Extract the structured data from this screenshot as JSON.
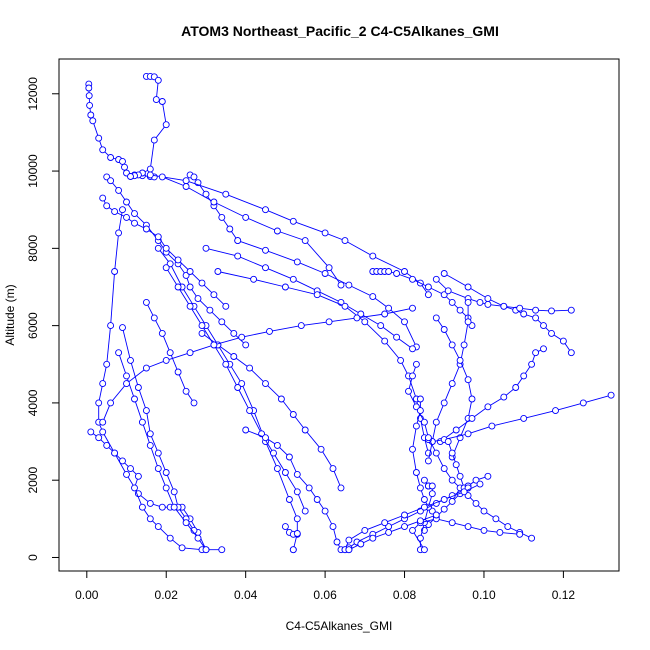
{
  "chart_data": {
    "type": "line",
    "title": "ATOM3 Northeast_Pacific_2 C4-C5Alkanes_GMI",
    "xlabel": "C4-C5Alkanes_GMI",
    "ylabel": "Altitude (m)",
    "xlim": [
      -0.007,
      0.134
    ],
    "ylim": [
      -350,
      12900
    ],
    "x_ticks": [
      0.0,
      0.02,
      0.04,
      0.06,
      0.08,
      0.1,
      0.12
    ],
    "x_tick_labels": [
      "0.00",
      "0.02",
      "0.04",
      "0.06",
      "0.08",
      "0.10",
      "0.12"
    ],
    "y_ticks": [
      0,
      2000,
      4000,
      6000,
      8000,
      10000,
      12000
    ],
    "y_tick_labels": [
      "0",
      "2000",
      "4000",
      "6000",
      "8000",
      "10000",
      "12000"
    ],
    "grid": false,
    "legend": "none",
    "series_color": "#0000ff",
    "series": [
      {
        "x": [
          0.0005,
          0.0005,
          0.0006,
          0.0007,
          0.001,
          0.0015,
          0.003,
          0.004,
          0.006,
          0.008,
          0.009,
          0.0095,
          0.01,
          0.012,
          0.014,
          0.016,
          0.017
        ],
        "y": [
          12250,
          12150,
          11950,
          11700,
          11450,
          11300,
          10850,
          10550,
          10350,
          10300,
          10250,
          10100,
          9950,
          9900,
          9880,
          9860,
          9850
        ]
      },
      {
        "x": [
          0.015,
          0.016,
          0.017,
          0.018,
          0.0175,
          0.019,
          0.02,
          0.017,
          0.016,
          0.014,
          0.013,
          0.012,
          0.011
        ],
        "y": [
          12450,
          12450,
          12440,
          12350,
          11850,
          11800,
          11200,
          10800,
          10050,
          9950,
          9900,
          9880,
          9860
        ]
      },
      {
        "x": [
          0.005,
          0.006,
          0.008,
          0.01,
          0.012,
          0.015,
          0.018,
          0.02,
          0.023,
          0.025,
          0.026,
          0.028,
          0.031,
          0.034,
          0.037,
          0.04
        ],
        "y": [
          9850,
          9750,
          9500,
          9200,
          8900,
          8600,
          8200,
          7900,
          7600,
          7300,
          7000,
          6700,
          6400,
          6100,
          5800,
          5500
        ]
      },
      {
        "x": [
          0.004,
          0.005,
          0.007,
          0.01,
          0.012,
          0.015,
          0.018,
          0.02,
          0.023,
          0.026,
          0.029,
          0.032,
          0.035
        ],
        "y": [
          9300,
          9100,
          8950,
          8800,
          8650,
          8500,
          8300,
          8000,
          7700,
          7400,
          7100,
          6800,
          6500
        ]
      },
      {
        "x": [
          0.026,
          0.027,
          0.028,
          0.03,
          0.032,
          0.034,
          0.036,
          0.038
        ],
        "y": [
          9900,
          9850,
          9700,
          9400,
          9100,
          8800,
          8500,
          8200
        ]
      },
      {
        "x": [
          0.009,
          0.008,
          0.007,
          0.006,
          0.005,
          0.004,
          0.003,
          0.003,
          0.004,
          0.007,
          0.01,
          0.013,
          0.016,
          0.019,
          0.021,
          0.024,
          0.026,
          0.028,
          0.03
        ],
        "y": [
          9000,
          8400,
          7400,
          6000,
          5000,
          4500,
          4000,
          3500,
          3250,
          2700,
          2150,
          1650,
          1400,
          1300,
          1300,
          1300,
          1000,
          650,
          200
        ]
      },
      {
        "x": [
          0.001,
          0.003,
          0.005,
          0.007,
          0.009,
          0.011,
          0.013,
          0.012,
          0.014,
          0.016,
          0.018,
          0.021,
          0.024,
          0.029,
          0.034
        ],
        "y": [
          3250,
          3100,
          2900,
          2700,
          2500,
          2300,
          2100,
          1800,
          1300,
          1000,
          800,
          500,
          250,
          200,
          200
        ]
      },
      {
        "x": [
          0.009,
          0.011,
          0.013,
          0.015,
          0.016,
          0.018,
          0.02,
          0.022,
          0.023,
          0.025,
          0.027
        ],
        "y": [
          5950,
          5100,
          4400,
          3800,
          3200,
          2700,
          2200,
          1700,
          1300,
          1000,
          700
        ]
      },
      {
        "x": [
          0.008,
          0.01,
          0.012,
          0.014,
          0.016,
          0.018,
          0.02,
          0.022,
          0.025,
          0.028,
          0.03
        ],
        "y": [
          5300,
          4700,
          4100,
          3500,
          2900,
          2300,
          1800,
          1300,
          900,
          500,
          200
        ]
      },
      {
        "x": [
          0.015,
          0.017,
          0.019,
          0.021,
          0.023,
          0.025,
          0.027
        ],
        "y": [
          6600,
          6200,
          5800,
          5300,
          4800,
          4300,
          4000
        ]
      },
      {
        "x": [
          0.018,
          0.021,
          0.024,
          0.027,
          0.03,
          0.033,
          0.036,
          0.039,
          0.042,
          0.045,
          0.048,
          0.051,
          0.053,
          0.053
        ],
        "y": [
          8000,
          7600,
          7000,
          6500,
          6000,
          5500,
          5000,
          4500,
          3800,
          3000,
          2300,
          1500,
          1000,
          600
        ]
      },
      {
        "x": [
          0.02,
          0.023,
          0.026,
          0.029,
          0.032,
          0.035,
          0.038,
          0.041,
          0.044,
          0.047,
          0.05,
          0.053,
          0.055
        ],
        "y": [
          7500,
          7000,
          6500,
          6000,
          5500,
          5000,
          4400,
          3800,
          3200,
          2700,
          2200,
          1700,
          1200
        ]
      },
      {
        "x": [
          0.05,
          0.051,
          0.052,
          0.053,
          0.052,
          0.052
        ],
        "y": [
          800,
          650,
          600,
          620,
          200,
          200
        ]
      },
      {
        "x": [
          0.04,
          0.045,
          0.048,
          0.051,
          0.053,
          0.056,
          0.058,
          0.06,
          0.062,
          0.063,
          0.064
        ],
        "y": [
          3300,
          3100,
          2900,
          2600,
          2150,
          1800,
          1500,
          1200,
          800,
          400,
          200
        ]
      },
      {
        "x": [
          0.029,
          0.033,
          0.037,
          0.041,
          0.045,
          0.049,
          0.052,
          0.055,
          0.059,
          0.062,
          0.064
        ],
        "y": [
          5800,
          5500,
          5200,
          4900,
          4500,
          4100,
          3700,
          3300,
          2800,
          2300,
          1800
        ]
      },
      {
        "x": [
          0.016,
          0.025,
          0.035,
          0.045,
          0.052,
          0.06,
          0.065,
          0.072,
          0.08,
          0.084,
          0.086
        ],
        "y": [
          9900,
          9750,
          9400,
          9000,
          8700,
          8400,
          8200,
          7800,
          7400,
          7100,
          6800
        ]
      },
      {
        "x": [
          0.019,
          0.025,
          0.032,
          0.04,
          0.048,
          0.055,
          0.061,
          0.064
        ],
        "y": [
          9850,
          9600,
          9200,
          8800,
          8450,
          8200,
          7500,
          7050
        ]
      },
      {
        "x": [
          0.038,
          0.045,
          0.053,
          0.06,
          0.066,
          0.072,
          0.076,
          0.08,
          0.083
        ],
        "y": [
          8200,
          7950,
          7650,
          7350,
          7050,
          6750,
          6450,
          6100,
          5450
        ]
      },
      {
        "x": [
          0.03,
          0.038,
          0.045,
          0.052,
          0.058,
          0.064,
          0.069,
          0.074,
          0.078,
          0.082
        ],
        "y": [
          8000,
          7800,
          7500,
          7200,
          6900,
          6600,
          6300,
          6000,
          5700,
          5400
        ]
      },
      {
        "x": [
          0.033,
          0.042,
          0.05,
          0.058,
          0.065,
          0.07,
          0.075,
          0.079,
          0.081,
          0.083,
          0.084,
          0.085,
          0.086
        ],
        "y": [
          7400,
          7200,
          7000,
          6800,
          6500,
          6100,
          5600,
          5100,
          4700,
          4100,
          3600,
          3100,
          2700
        ]
      },
      {
        "x": [
          0.072,
          0.073,
          0.074,
          0.075,
          0.076,
          0.078,
          0.082,
          0.086,
          0.09,
          0.092,
          0.094,
          0.096,
          0.097
        ],
        "y": [
          7400,
          7400,
          7400,
          7400,
          7400,
          7350,
          7200,
          7000,
          6800,
          6600,
          6400,
          6200,
          6000
        ]
      },
      {
        "x": [
          0.09,
          0.096,
          0.101,
          0.105,
          0.108,
          0.11,
          0.113,
          0.115,
          0.117,
          0.12,
          0.122
        ],
        "y": [
          7350,
          7000,
          6700,
          6500,
          6400,
          6300,
          6200,
          6000,
          5800,
          5600,
          5300
        ]
      },
      {
        "x": [
          0.088,
          0.091,
          0.096,
          0.099,
          0.101,
          0.105,
          0.109,
          0.113,
          0.117,
          0.122
        ],
        "y": [
          7200,
          6900,
          6700,
          6600,
          6550,
          6500,
          6450,
          6400,
          6380,
          6400
        ]
      },
      {
        "x": [
          0.096,
          0.096,
          0.095,
          0.094,
          0.092,
          0.09,
          0.088,
          0.087,
          0.086
        ],
        "y": [
          6600,
          6100,
          5500,
          5000,
          4500,
          4000,
          3500,
          3000,
          2500
        ]
      },
      {
        "x": [
          0.088,
          0.09,
          0.092,
          0.094,
          0.096,
          0.097,
          0.096,
          0.094,
          0.092
        ],
        "y": [
          6200,
          5900,
          5500,
          5100,
          4600,
          4100,
          3600,
          3100,
          2600
        ]
      },
      {
        "x": [
          0.115,
          0.113,
          0.112,
          0.11,
          0.108,
          0.105,
          0.101,
          0.097,
          0.093,
          0.089
        ],
        "y": [
          5400,
          5300,
          5000,
          4700,
          4400,
          4150,
          3900,
          3600,
          3300,
          3000
        ]
      },
      {
        "x": [
          0.132,
          0.125,
          0.118,
          0.11,
          0.102,
          0.096,
          0.09,
          0.087,
          0.086
        ],
        "y": [
          4200,
          4000,
          3800,
          3600,
          3400,
          3200,
          3050,
          3000,
          3050
        ]
      },
      {
        "x": [
          0.083,
          0.082,
          0.081,
          0.083,
          0.085,
          0.086,
          0.088,
          0.09,
          0.092,
          0.094,
          0.096
        ],
        "y": [
          5000,
          4700,
          4300,
          3900,
          3500,
          3100,
          2700,
          2300,
          2000,
          1800,
          1800
        ]
      },
      {
        "x": [
          0.084,
          0.084,
          0.083,
          0.082,
          0.083,
          0.084,
          0.085,
          0.086,
          0.087
        ],
        "y": [
          4100,
          3800,
          3400,
          2800,
          2200,
          1800,
          1500,
          1300,
          1200
        ]
      },
      {
        "x": [
          0.091,
          0.092,
          0.093,
          0.094,
          0.095,
          0.096,
          0.098,
          0.1,
          0.103,
          0.106,
          0.109,
          0.112
        ],
        "y": [
          3000,
          2700,
          2400,
          2100,
          1800,
          1600,
          1400,
          1200,
          1000,
          800,
          650,
          500
        ]
      },
      {
        "x": [
          0.101,
          0.098,
          0.096,
          0.094,
          0.092,
          0.09,
          0.088,
          0.086,
          0.085
        ],
        "y": [
          2100,
          2000,
          1850,
          1650,
          1450,
          1250,
          1050,
          850,
          700
        ]
      },
      {
        "x": [
          0.085,
          0.086,
          0.086,
          0.087,
          0.087,
          0.086,
          0.085,
          0.084,
          0.084
        ],
        "y": [
          2000,
          1850,
          1850,
          1850,
          1650,
          1300,
          900,
          500,
          200
        ]
      },
      {
        "x": [
          0.096,
          0.092,
          0.088,
          0.084,
          0.08,
          0.076,
          0.072,
          0.068,
          0.066,
          0.065
        ],
        "y": [
          1800,
          1600,
          1400,
          1200,
          1000,
          800,
          600,
          400,
          250,
          200
        ]
      },
      {
        "x": [
          0.099,
          0.095,
          0.09,
          0.085,
          0.08,
          0.075,
          0.07,
          0.066,
          0.065,
          0.066
        ],
        "y": [
          1900,
          1700,
          1500,
          1300,
          1100,
          900,
          700,
          450,
          200,
          200
        ]
      },
      {
        "x": [
          0.109,
          0.104,
          0.1,
          0.096,
          0.092,
          0.088,
          0.084,
          0.082,
          0.085
        ],
        "y": [
          600,
          650,
          700,
          800,
          900,
          1000,
          900,
          700,
          200
        ]
      },
      {
        "x": [
          0.088,
          0.084,
          0.08,
          0.076,
          0.072,
          0.069,
          0.066
        ],
        "y": [
          1100,
          950,
          800,
          650,
          500,
          350,
          200
        ]
      },
      {
        "x": [
          0.004,
          0.006,
          0.01,
          0.015,
          0.02,
          0.026,
          0.032,
          0.039,
          0.046,
          0.054,
          0.061,
          0.068,
          0.075,
          0.082
        ],
        "y": [
          3500,
          4000,
          4500,
          4900,
          5100,
          5300,
          5500,
          5700,
          5850,
          6000,
          6100,
          6200,
          6300,
          6450
        ]
      }
    ]
  }
}
